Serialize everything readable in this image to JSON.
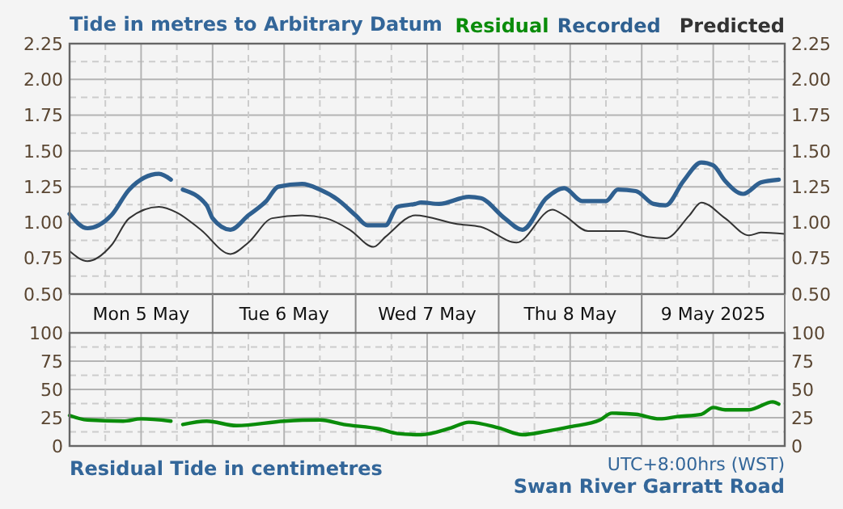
{
  "chart_data": [
    {
      "type": "line",
      "title": "Tide in metres to Arbitrary Datum",
      "legend": "top right",
      "grid": true,
      "xlim": [
        "2025-05-05T00:00",
        "2025-05-10T00:00"
      ],
      "xticks": [
        {
          "value": "2025-05-05T00:00",
          "label": null
        },
        {
          "value": "2025-05-05T06:00",
          "label": null
        },
        {
          "value": "2025-05-05T12:00",
          "label": "Mon 5 May"
        },
        {
          "value": "2025-05-05T18:00",
          "label": null
        },
        {
          "value": "2025-05-06T00:00",
          "label": null
        },
        {
          "value": "2025-05-06T06:00",
          "label": null
        },
        {
          "value": "2025-05-06T12:00",
          "label": "Tue 6 May"
        },
        {
          "value": "2025-05-06T18:00",
          "label": null
        },
        {
          "value": "2025-05-07T00:00",
          "label": null
        },
        {
          "value": "2025-05-07T06:00",
          "label": null
        },
        {
          "value": "2025-05-07T12:00",
          "label": "Wed 7 May"
        },
        {
          "value": "2025-05-07T18:00",
          "label": null
        },
        {
          "value": "2025-05-08T00:00",
          "label": null
        },
        {
          "value": "2025-05-08T06:00",
          "label": null
        },
        {
          "value": "2025-05-08T12:00",
          "label": "Thu 8 May"
        },
        {
          "value": "2025-05-08T18:00",
          "label": null
        },
        {
          "value": "2025-05-09T00:00",
          "label": null
        },
        {
          "value": "2025-05-09T06:00",
          "label": null
        },
        {
          "value": "2025-05-09T12:00",
          "label": "9 May 2025"
        },
        {
          "value": "2025-05-09T18:00",
          "label": null
        },
        {
          "value": "2025-05-10T00:00",
          "label": null
        }
      ],
      "ylim": [
        0.5,
        2.25
      ],
      "yticks": [
        {
          "value": 0.5,
          "label": "0.50"
        },
        {
          "value": 0.625,
          "label": null
        },
        {
          "value": 0.75,
          "label": "0.75"
        },
        {
          "value": 0.875,
          "label": null
        },
        {
          "value": 1,
          "label": "1.00"
        },
        {
          "value": 1.125,
          "label": null
        },
        {
          "value": 1.25,
          "label": "1.25"
        },
        {
          "value": 1.375,
          "label": null
        },
        {
          "value": 1.5,
          "label": "1.50"
        },
        {
          "value": 1.625,
          "label": null
        },
        {
          "value": 1.75,
          "label": "1.75"
        },
        {
          "value": 1.875,
          "label": null
        },
        {
          "value": 2,
          "label": "2.00"
        },
        {
          "value": 2.125,
          "label": null
        },
        {
          "value": 2.25,
          "label": "2.25"
        }
      ],
      "y2lim": [
        0.5,
        2.25
      ],
      "y2ticks": [
        {
          "value": 0.5,
          "label": "0.50"
        },
        {
          "value": 0.75,
          "label": "0.75"
        },
        {
          "value": 1,
          "label": "1.00"
        },
        {
          "value": 1.25,
          "label": "1.25"
        },
        {
          "value": 1.5,
          "label": "1.50"
        },
        {
          "value": 1.75,
          "label": "1.75"
        },
        {
          "value": 2,
          "label": "2.00"
        },
        {
          "value": 2.25,
          "label": "2.25"
        }
      ],
      "series": [
        {
          "name": "Recorded",
          "color": "#2f6090",
          "x": [
            "2025-05-05T00:00",
            "2025-05-05T03:00",
            "2025-05-05T07:00",
            "2025-05-05T10:00",
            "2025-05-05T15:00",
            "2025-05-05T17:00",
            "2025-05-05T18:00",
            "2025-05-05T19:00",
            "2025-05-05T23:00",
            "2025-05-06T00:00",
            "2025-05-06T03:00",
            "2025-05-06T06:00",
            "2025-05-06T09:00",
            "2025-05-06T11:00",
            "2025-05-06T15:00",
            "2025-05-06T18:00",
            "2025-05-06T21:00",
            "2025-05-07T00:00",
            "2025-05-07T02:00",
            "2025-05-07T05:00",
            "2025-05-07T07:00",
            "2025-05-07T10:00",
            "2025-05-07T11:00",
            "2025-05-07T14:00",
            "2025-05-07T19:00",
            "2025-05-07T21:00",
            "2025-05-08T01:00",
            "2025-05-08T04:00",
            "2025-05-08T08:00",
            "2025-05-08T11:00",
            "2025-05-08T14:00",
            "2025-05-08T18:00",
            "2025-05-08T20:00",
            "2025-05-08T23:00",
            "2025-05-09T02:00",
            "2025-05-09T04:00",
            "2025-05-09T07:00",
            "2025-05-09T10:00",
            "2025-05-09T12:00",
            "2025-05-09T14:00",
            "2025-05-09T17:00",
            "2025-05-09T20:00",
            "2025-05-09T23:00"
          ],
          "values": [
            1.06,
            0.96,
            1.05,
            1.23,
            1.34,
            1.3,
            null,
            1.23,
            1.12,
            1.03,
            0.95,
            1.05,
            1.15,
            1.25,
            1.27,
            1.23,
            1.16,
            1.05,
            0.98,
            0.98,
            1.11,
            1.13,
            1.14,
            1.13,
            1.18,
            1.17,
            1.03,
            0.95,
            1.17,
            1.24,
            1.15,
            1.15,
            1.23,
            1.22,
            1.13,
            1.12,
            1.29,
            1.42,
            1.4,
            1.29,
            1.2,
            1.28,
            1.3
          ]
        },
        {
          "name": "Predicted",
          "color": "#333333",
          "x": [
            "2025-05-05T00:00",
            "2025-05-05T03:00",
            "2025-05-05T07:00",
            "2025-05-05T10:00",
            "2025-05-05T15:00",
            "2025-05-05T18:00",
            "2025-05-05T22:00",
            "2025-05-06T03:00",
            "2025-05-06T06:00",
            "2025-05-06T10:00",
            "2025-05-06T15:00",
            "2025-05-06T19:00",
            "2025-05-06T23:00",
            "2025-05-07T03:00",
            "2025-05-07T05:00",
            "2025-05-07T10:00",
            "2025-05-07T17:00",
            "2025-05-07T21:00",
            "2025-05-08T03:00",
            "2025-05-08T09:00",
            "2025-05-08T11:00",
            "2025-05-08T15:00",
            "2025-05-08T21:00",
            "2025-05-09T01:00",
            "2025-05-09T04:00",
            "2025-05-09T08:00",
            "2025-05-09T10:00",
            "2025-05-09T14:00",
            "2025-05-09T18:00",
            "2025-05-09T20:00",
            "2025-05-10T00:00"
          ],
          "values": [
            0.8,
            0.73,
            0.84,
            1.03,
            1.11,
            1.07,
            0.95,
            0.78,
            0.86,
            1.03,
            1.05,
            1.03,
            0.95,
            0.83,
            0.9,
            1.05,
            0.99,
            0.97,
            0.86,
            1.09,
            1.05,
            0.94,
            0.94,
            0.9,
            0.89,
            1.05,
            1.14,
            1.03,
            0.91,
            0.93,
            0.92
          ]
        }
      ]
    },
    {
      "type": "line",
      "title": "Residual Tide in centimetres",
      "legend": "top right",
      "grid": true,
      "tick_labels": "y",
      "annotations": [
        "UTC+8:00hrs (WST)",
        "Swan River Garratt Road"
      ],
      "xlim": [
        "2025-05-05T00:00",
        "2025-05-10T00:00"
      ],
      "xticks": [
        {
          "value": "2025-05-05T00:00",
          "label": null
        },
        {
          "value": "2025-05-05T06:00",
          "label": null
        },
        {
          "value": "2025-05-05T12:00",
          "label": null
        },
        {
          "value": "2025-05-05T18:00",
          "label": null
        },
        {
          "value": "2025-05-06T00:00",
          "label": null
        },
        {
          "value": "2025-05-06T06:00",
          "label": null
        },
        {
          "value": "2025-05-06T12:00",
          "label": null
        },
        {
          "value": "2025-05-06T18:00",
          "label": null
        },
        {
          "value": "2025-05-07T00:00",
          "label": null
        },
        {
          "value": "2025-05-07T06:00",
          "label": null
        },
        {
          "value": "2025-05-07T12:00",
          "label": null
        },
        {
          "value": "2025-05-07T18:00",
          "label": null
        },
        {
          "value": "2025-05-08T00:00",
          "label": null
        },
        {
          "value": "2025-05-08T06:00",
          "label": null
        },
        {
          "value": "2025-05-08T12:00",
          "label": null
        },
        {
          "value": "2025-05-08T18:00",
          "label": null
        },
        {
          "value": "2025-05-09T00:00",
          "label": null
        },
        {
          "value": "2025-05-09T06:00",
          "label": null
        },
        {
          "value": "2025-05-09T12:00",
          "label": null
        },
        {
          "value": "2025-05-09T18:00",
          "label": null
        },
        {
          "value": "2025-05-10T00:00",
          "label": null
        }
      ],
      "ylim": [
        0,
        100
      ],
      "yticks": [
        0,
        {
          "value": 12.5,
          "label": null
        },
        25,
        {
          "value": 37.5,
          "label": null
        },
        50,
        {
          "value": 62.5,
          "label": null
        },
        75,
        {
          "value": 87.5,
          "label": null
        },
        100
      ],
      "y2lim": [
        0,
        100
      ],
      "y2ticks": [
        0,
        25,
        50,
        75,
        100
      ],
      "series": [
        {
          "name": "Residual",
          "color": "#0a8c0a",
          "x": [
            "2025-05-05T00:00",
            "2025-05-05T03:00",
            "2025-05-05T09:00",
            "2025-05-05T12:00",
            "2025-05-05T17:00",
            "2025-05-05T18:00",
            "2025-05-05T19:00",
            "2025-05-05T23:00",
            "2025-05-06T04:00",
            "2025-05-06T12:00",
            "2025-05-06T18:00",
            "2025-05-06T22:00",
            "2025-05-07T04:00",
            "2025-05-07T07:00",
            "2025-05-07T11:00",
            "2025-05-07T16:00",
            "2025-05-07T19:00",
            "2025-05-08T00:00",
            "2025-05-08T04:00",
            "2025-05-08T08:00",
            "2025-05-08T12:00",
            "2025-05-08T17:00",
            "2025-05-08T19:00",
            "2025-05-08T23:00",
            "2025-05-09T03:00",
            "2025-05-09T06:00",
            "2025-05-09T10:00",
            "2025-05-09T12:00",
            "2025-05-09T14:00",
            "2025-05-09T18:00",
            "2025-05-09T22:00",
            "2025-05-09T23:00"
          ],
          "values": [
            27,
            23,
            22,
            24,
            22,
            null,
            19,
            22,
            18,
            22,
            23,
            19,
            15,
            11,
            10,
            16,
            21,
            16,
            10,
            13,
            17,
            23,
            29,
            28,
            24,
            26,
            28,
            34,
            32,
            32,
            39,
            37
          ]
        }
      ]
    }
  ]
}
